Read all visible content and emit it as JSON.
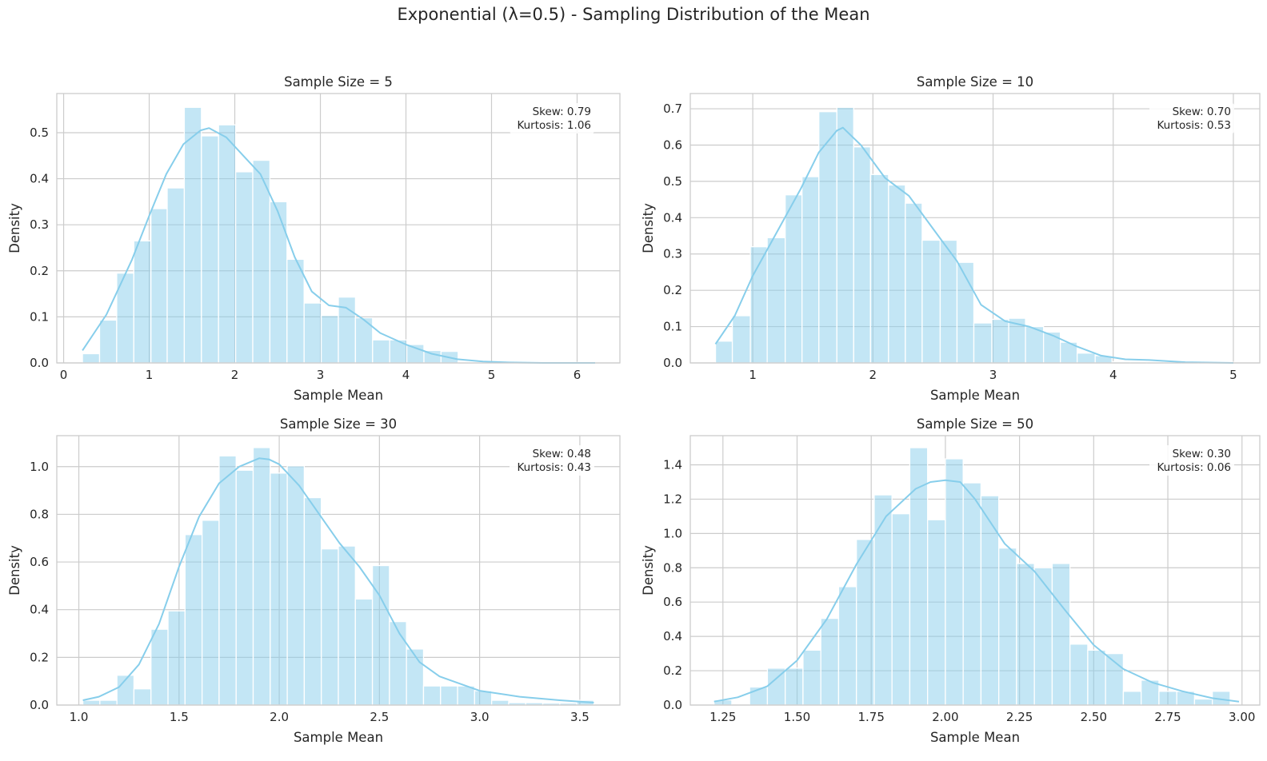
{
  "suptitle": "Exponential (λ=0.5) - Sampling Distribution of the Mean",
  "colors": {
    "bar": "#87ceeb",
    "kde": "#87ceeb",
    "grid": "#cccccc",
    "spine": "#cccccc",
    "text": "#262626"
  },
  "chart_data": [
    {
      "type": "bar",
      "subtype": "histogram with kde",
      "title": "Sample Size = 5",
      "xlabel": "Sample Mean",
      "ylabel": "Density",
      "xlim": [
        -0.08,
        6.5
      ],
      "ylim": [
        0,
        0.585
      ],
      "xticks": [
        0,
        1,
        2,
        3,
        4,
        5,
        6
      ],
      "yticks": [
        0.0,
        0.1,
        0.2,
        0.3,
        0.4,
        0.5
      ],
      "tick_decimals": {
        "x": 0,
        "y": 1
      },
      "grid": true,
      "stats": {
        "skew": "Skew: 0.79",
        "kurtosis": "Kurtosis: 1.06"
      },
      "bin_edges": [
        0.22,
        0.42,
        0.62,
        0.82,
        1.02,
        1.21,
        1.41,
        1.61,
        1.81,
        2.01,
        2.21,
        2.41,
        2.61,
        2.81,
        3.01,
        3.21,
        3.41,
        3.61,
        3.81,
        4.01,
        4.21,
        4.41,
        4.61,
        4.81,
        5.01,
        5.21,
        5.41,
        5.61,
        5.81,
        6.01,
        6.21
      ],
      "densities": [
        0.02,
        0.093,
        0.195,
        0.265,
        0.335,
        0.38,
        0.555,
        0.493,
        0.517,
        0.415,
        0.44,
        0.35,
        0.225,
        0.13,
        0.103,
        0.143,
        0.098,
        0.05,
        0.05,
        0.04,
        0.027,
        0.025,
        0.002,
        0.002,
        0.002,
        0.002,
        0.001,
        0.001,
        0.001,
        0.002
      ],
      "kde": {
        "x": [
          0.22,
          0.5,
          0.8,
          1.0,
          1.2,
          1.4,
          1.6,
          1.7,
          1.9,
          2.1,
          2.3,
          2.5,
          2.7,
          2.9,
          3.1,
          3.3,
          3.5,
          3.7,
          4.0,
          4.3,
          4.6,
          4.9,
          5.2,
          5.6,
          6.21
        ],
        "y": [
          0.027,
          0.105,
          0.225,
          0.32,
          0.41,
          0.475,
          0.505,
          0.51,
          0.49,
          0.45,
          0.41,
          0.33,
          0.23,
          0.155,
          0.125,
          0.12,
          0.095,
          0.065,
          0.04,
          0.02,
          0.008,
          0.003,
          0.001,
          0.0,
          0.0
        ]
      }
    },
    {
      "type": "bar",
      "subtype": "histogram with kde",
      "title": "Sample Size = 10",
      "xlabel": "Sample Mean",
      "ylabel": "Density",
      "xlim": [
        0.48,
        5.22
      ],
      "ylim": [
        0,
        0.742
      ],
      "xticks": [
        1,
        2,
        3,
        4,
        5
      ],
      "yticks": [
        0.0,
        0.1,
        0.2,
        0.3,
        0.4,
        0.5,
        0.6,
        0.7
      ],
      "tick_decimals": {
        "x": 0,
        "y": 1
      },
      "grid": true,
      "stats": {
        "skew": "Skew: 0.70",
        "kurtosis": "Kurtosis: 0.53"
      },
      "bin_edges": [
        0.69,
        0.83,
        0.98,
        1.12,
        1.27,
        1.41,
        1.55,
        1.7,
        1.84,
        1.98,
        2.13,
        2.27,
        2.41,
        2.56,
        2.7,
        2.84,
        2.99,
        3.13,
        3.27,
        3.42,
        3.56,
        3.7,
        3.85,
        3.99,
        4.14,
        4.28,
        4.42,
        4.57,
        4.71,
        4.85,
        5.0
      ],
      "densities": [
        0.06,
        0.13,
        0.32,
        0.345,
        0.463,
        0.513,
        0.692,
        0.704,
        0.595,
        0.519,
        0.49,
        0.44,
        0.338,
        0.338,
        0.277,
        0.11,
        0.12,
        0.123,
        0.1,
        0.085,
        0.057,
        0.027,
        0.02,
        0.003,
        0.003,
        0.003,
        0.001,
        0.001,
        0.001,
        0.002
      ],
      "kde": {
        "x": [
          0.69,
          0.85,
          1.0,
          1.2,
          1.4,
          1.55,
          1.7,
          1.75,
          1.9,
          2.1,
          2.3,
          2.5,
          2.7,
          2.9,
          3.1,
          3.3,
          3.5,
          3.7,
          3.9,
          4.1,
          4.3,
          4.6,
          5.0
        ],
        "y": [
          0.052,
          0.13,
          0.24,
          0.36,
          0.48,
          0.58,
          0.64,
          0.648,
          0.6,
          0.51,
          0.46,
          0.37,
          0.28,
          0.16,
          0.115,
          0.1,
          0.075,
          0.045,
          0.02,
          0.01,
          0.008,
          0.002,
          0.0
        ]
      }
    },
    {
      "type": "bar",
      "subtype": "histogram with kde",
      "title": "Sample Size = 30",
      "xlabel": "Sample Mean",
      "ylabel": "Density",
      "xlim": [
        0.89,
        3.7
      ],
      "ylim": [
        0,
        1.13
      ],
      "xticks": [
        1.0,
        1.5,
        2.0,
        2.5,
        3.0,
        3.5
      ],
      "yticks": [
        0.0,
        0.2,
        0.4,
        0.6,
        0.8,
        1.0
      ],
      "tick_decimals": {
        "x": 1,
        "y": 1
      },
      "grid": true,
      "stats": {
        "skew": "Skew: 0.48",
        "kurtosis": "Kurtosis: 0.43"
      },
      "bin_edges": [
        1.02,
        1.105,
        1.19,
        1.275,
        1.36,
        1.445,
        1.53,
        1.615,
        1.7,
        1.785,
        1.87,
        1.955,
        2.04,
        2.125,
        2.21,
        2.295,
        2.38,
        2.465,
        2.55,
        2.635,
        2.72,
        2.805,
        2.89,
        2.975,
        3.06,
        3.145,
        3.23,
        3.315,
        3.4,
        3.485,
        3.57
      ],
      "densities": [
        0.02,
        0.02,
        0.125,
        0.068,
        0.318,
        0.395,
        0.715,
        0.775,
        1.045,
        0.985,
        1.08,
        0.973,
        1.003,
        0.87,
        0.655,
        0.667,
        0.445,
        0.585,
        0.35,
        0.235,
        0.08,
        0.08,
        0.08,
        0.06,
        0.02,
        0.01,
        0.01,
        0.008,
        0.008,
        0.02
      ],
      "kde": {
        "x": [
          1.02,
          1.1,
          1.2,
          1.3,
          1.4,
          1.5,
          1.6,
          1.7,
          1.8,
          1.9,
          1.95,
          2.0,
          2.1,
          2.2,
          2.3,
          2.4,
          2.5,
          2.55,
          2.6,
          2.7,
          2.8,
          3.0,
          3.2,
          3.4,
          3.57
        ],
        "y": [
          0.02,
          0.035,
          0.075,
          0.17,
          0.34,
          0.58,
          0.79,
          0.93,
          1.0,
          1.035,
          1.03,
          1.01,
          0.92,
          0.8,
          0.68,
          0.58,
          0.46,
          0.38,
          0.3,
          0.18,
          0.12,
          0.06,
          0.035,
          0.02,
          0.01
        ]
      }
    },
    {
      "type": "bar",
      "subtype": "histogram with kde",
      "title": "Sample Size = 50",
      "xlabel": "Sample Mean",
      "ylabel": "Density",
      "xlim": [
        1.14,
        3.06
      ],
      "ylim": [
        0,
        1.57
      ],
      "xticks": [
        1.25,
        1.5,
        1.75,
        2.0,
        2.25,
        2.5,
        2.75,
        3.0
      ],
      "yticks": [
        0.0,
        0.2,
        0.4,
        0.6,
        0.8,
        1.0,
        1.2,
        1.4
      ],
      "tick_decimals": {
        "x": 2,
        "y": 1
      },
      "grid": true,
      "stats": {
        "skew": "Skew: 0.30",
        "kurtosis": "Kurtosis: 0.06"
      },
      "bin_edges": [
        1.22,
        1.28,
        1.34,
        1.4,
        1.46,
        1.52,
        1.58,
        1.64,
        1.7,
        1.76,
        1.82,
        1.88,
        1.94,
        2.0,
        2.06,
        2.12,
        2.18,
        2.24,
        2.3,
        2.36,
        2.42,
        2.48,
        2.54,
        2.6,
        2.66,
        2.72,
        2.78,
        2.84,
        2.9,
        2.96
      ],
      "densities": [
        0.03,
        0.0,
        0.105,
        0.215,
        0.215,
        0.32,
        0.505,
        0.69,
        0.965,
        1.225,
        1.115,
        1.5,
        1.08,
        1.435,
        1.295,
        1.22,
        0.915,
        0.825,
        0.8,
        0.825,
        0.355,
        0.32,
        0.3,
        0.08,
        0.145,
        0.08,
        0.08,
        0.035,
        0.08
      ],
      "kde": {
        "x": [
          1.22,
          1.3,
          1.4,
          1.5,
          1.6,
          1.7,
          1.8,
          1.9,
          1.95,
          2.0,
          2.05,
          2.1,
          2.2,
          2.3,
          2.4,
          2.5,
          2.6,
          2.7,
          2.8,
          2.9,
          2.99
        ],
        "y": [
          0.02,
          0.045,
          0.11,
          0.26,
          0.5,
          0.82,
          1.1,
          1.26,
          1.3,
          1.31,
          1.3,
          1.2,
          0.94,
          0.78,
          0.56,
          0.35,
          0.21,
          0.13,
          0.08,
          0.04,
          0.02
        ]
      }
    }
  ]
}
